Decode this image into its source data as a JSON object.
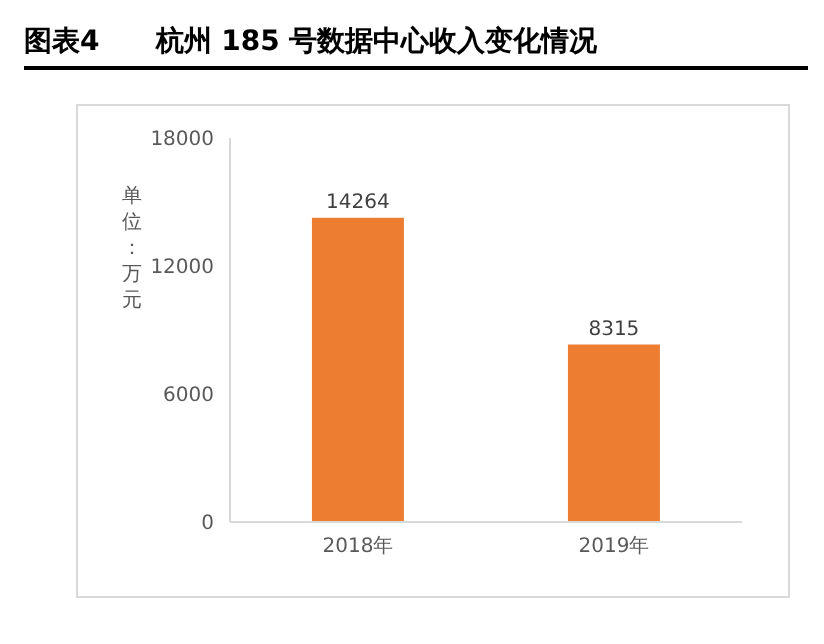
{
  "chart_data": {
    "type": "bar",
    "title": "图表4",
    "subtitle": "杭州 185 号数据中心收入变化情况",
    "ylabel": "单位：万元",
    "categories": [
      "2018年",
      "2019年"
    ],
    "values": [
      14264,
      8315
    ],
    "color": "#ed7d31",
    "ylim": [
      0,
      18000
    ],
    "yticks": [
      0,
      6000,
      12000,
      18000
    ],
    "data_labels": true
  }
}
